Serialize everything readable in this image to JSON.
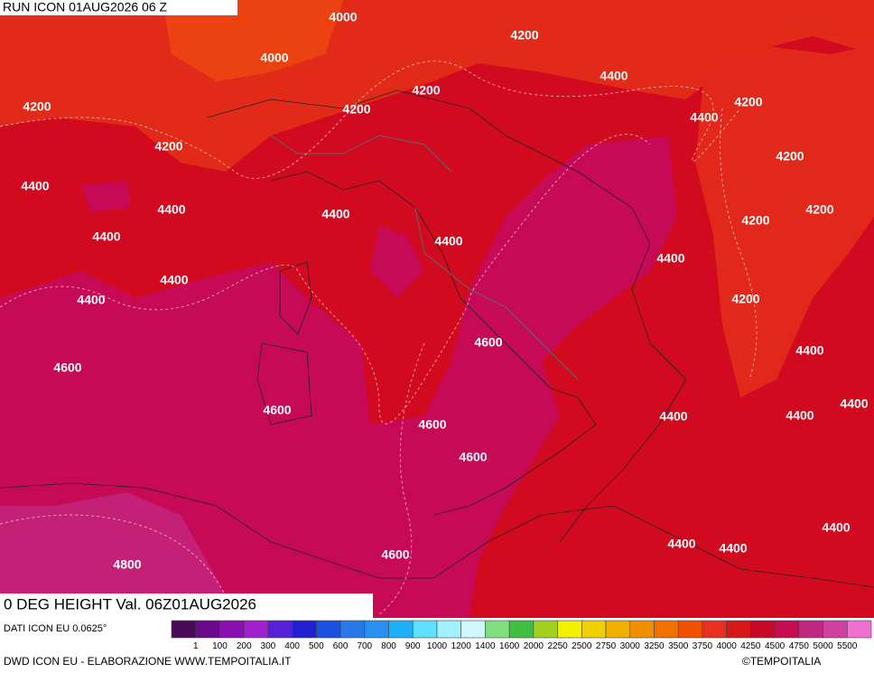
{
  "header": {
    "run": "RUN ICON 01AUG2026 06 Z"
  },
  "map": {
    "contour_labels": [
      4000,
      4200,
      4000,
      4400,
      4200,
      4200,
      4200,
      4400,
      4200,
      4200,
      4200,
      4400,
      4400,
      4400,
      4200,
      4200,
      4400,
      4400,
      4400,
      4400,
      4400,
      4200,
      4600,
      4400,
      4600,
      4400,
      4600,
      4400,
      4400,
      4600,
      4600,
      4400,
      4400,
      4400,
      4800,
      4600
    ]
  },
  "footer": {
    "title": "0 DEG HEIGHT Val. 06Z01AUG2026",
    "source": "DATI ICON EU 0.0625°",
    "credit": "DWD ICON EU - ELABORAZIONE WWW.TEMPOITALIA.IT",
    "copyright": "©TEMPOITALIA"
  },
  "legend": {
    "colors": [
      "#4a0a5a",
      "#6a0a8a",
      "#8a10b0",
      "#a020d0",
      "#5a20d8",
      "#2020d0",
      "#1a50e0",
      "#2878e8",
      "#2890f0",
      "#20b0f8",
      "#60e0ff",
      "#a0f0ff",
      "#d0f8ff",
      "#80e080",
      "#40c040",
      "#a0d020",
      "#f0f000",
      "#f0d000",
      "#f0b000",
      "#f09000",
      "#f07000",
      "#f05000",
      "#e83020",
      "#d81818",
      "#c80828",
      "#c80a50",
      "#c02880",
      "#d040a0",
      "#f070d0"
    ],
    "labels": [
      1,
      100,
      200,
      300,
      400,
      500,
      600,
      700,
      800,
      900,
      1000,
      1200,
      1400,
      1600,
      2000,
      2250,
      2500,
      2750,
      3000,
      3250,
      3500,
      3750,
      4000,
      4250,
      4500,
      4750,
      5000,
      5500
    ]
  }
}
